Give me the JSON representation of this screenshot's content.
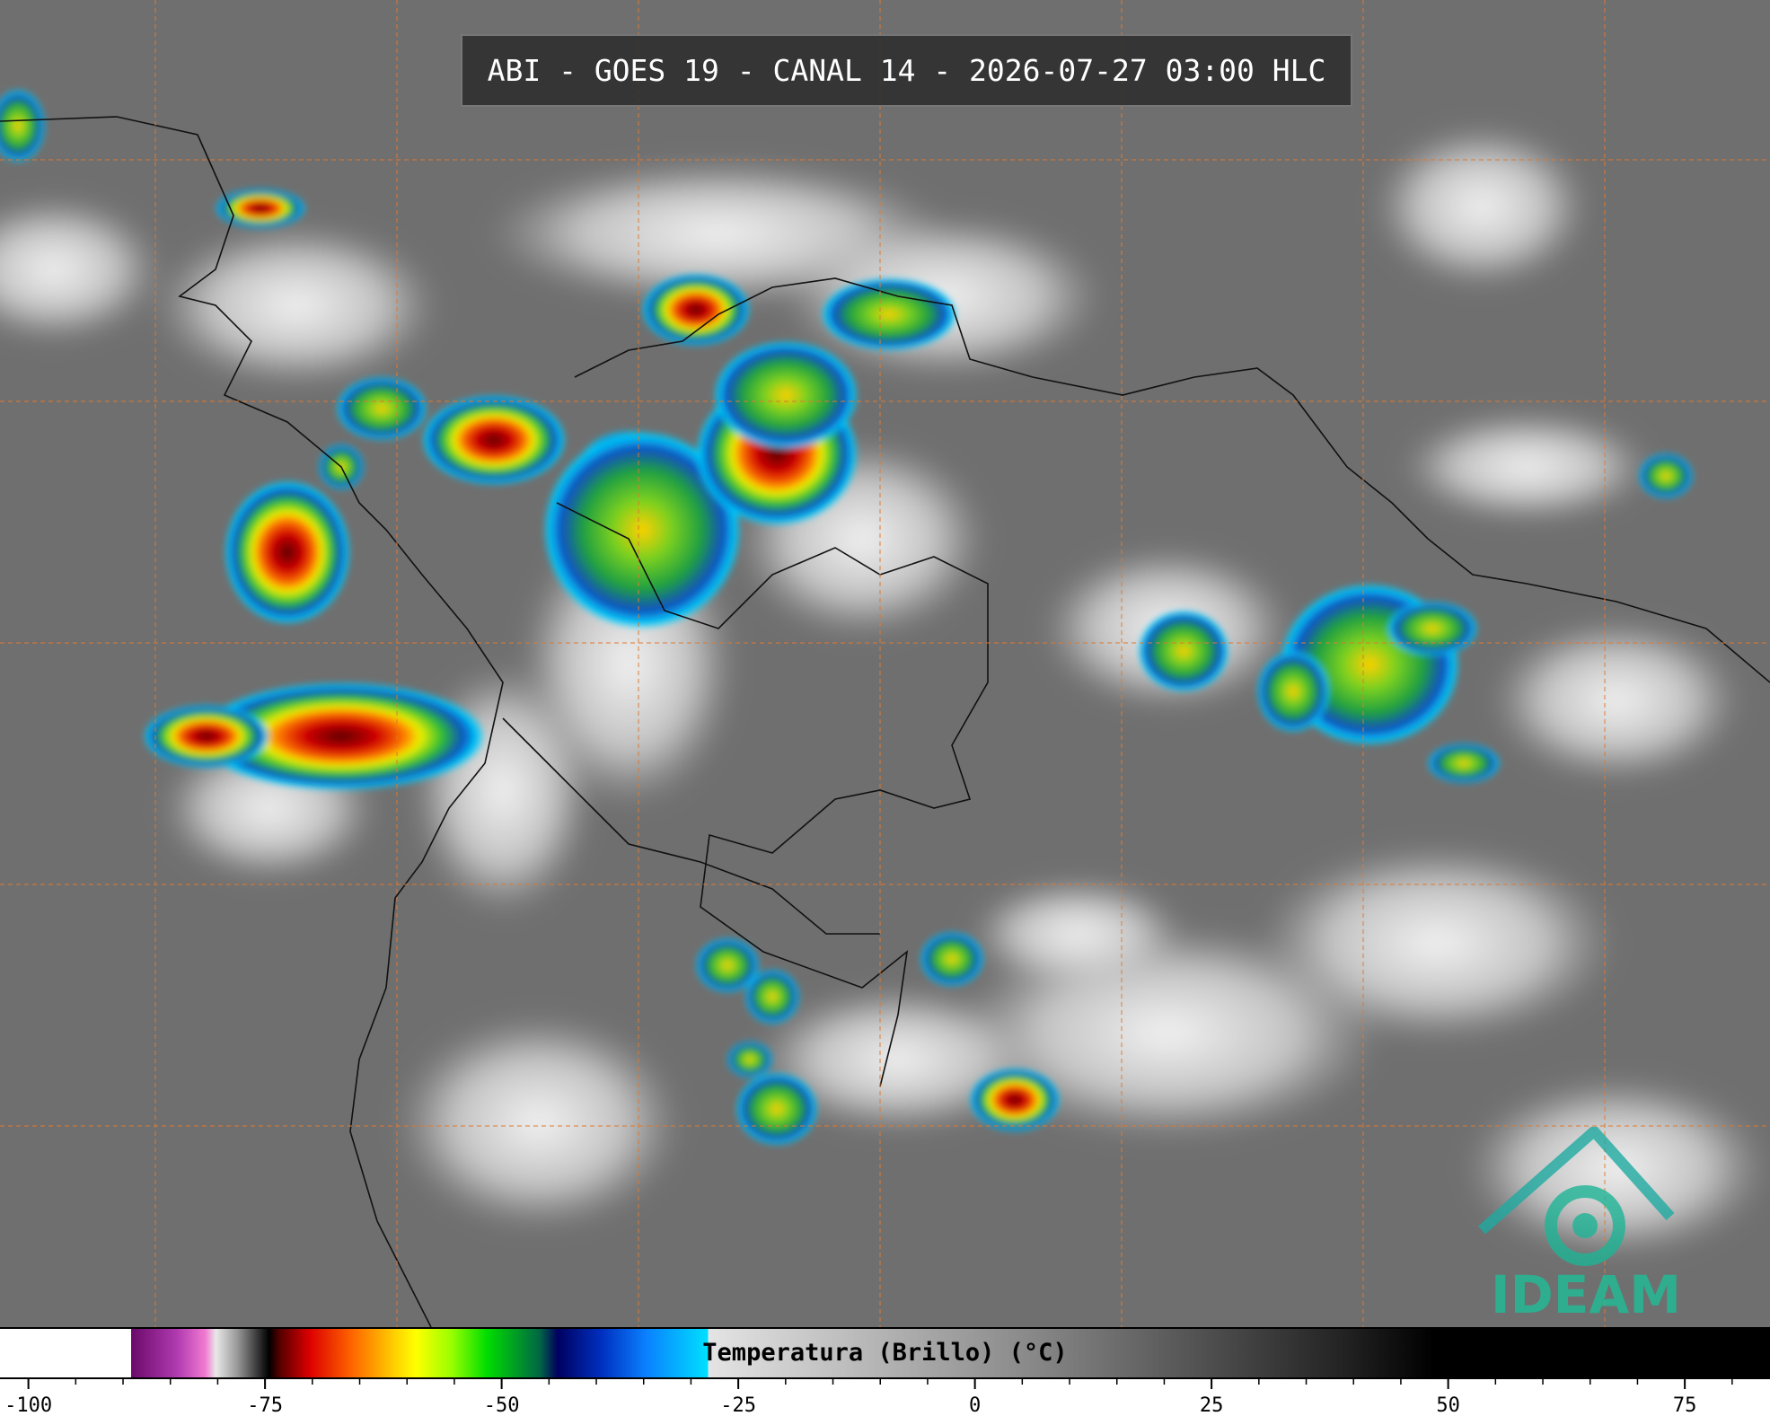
{
  "header": {
    "title": "ABI - GOES 19 - CANAL 14 - 2026-07-27 03:00 HLC"
  },
  "logo": {
    "text": "IDEAM"
  },
  "colorbar": {
    "label": "Temperatura (Brillo) (°C)",
    "range": [
      -103,
      84
    ],
    "ticks": [
      -100,
      -75,
      -50,
      -25,
      0,
      25,
      50,
      75
    ]
  }
}
